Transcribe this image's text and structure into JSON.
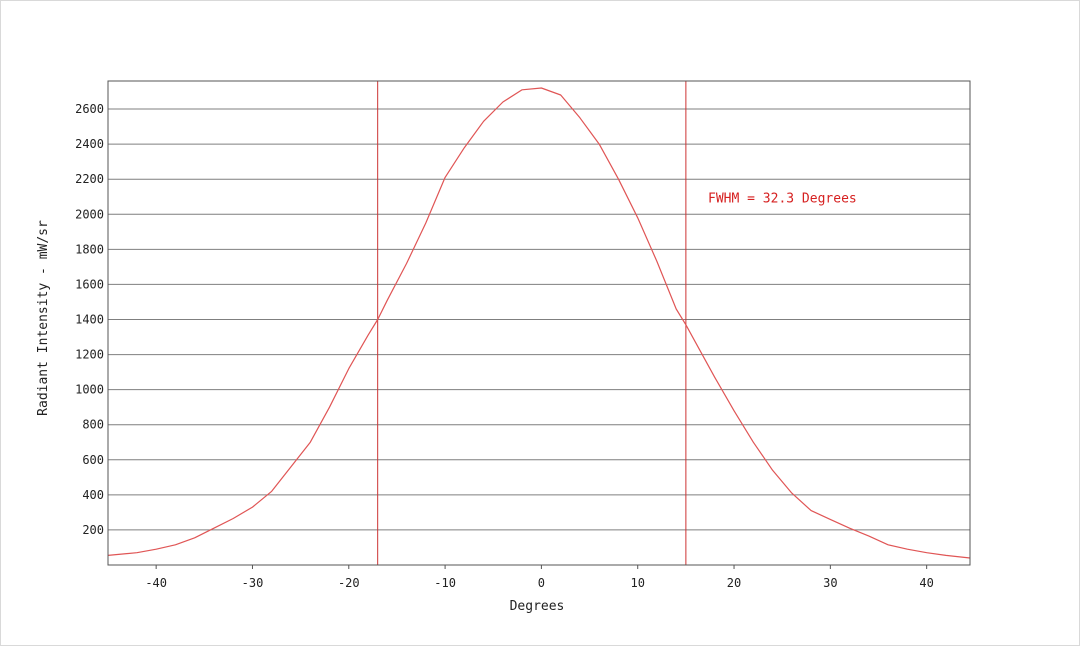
{
  "chart_data": {
    "type": "line",
    "title": "",
    "xlabel": "Degrees",
    "ylabel": "Radiant Intensity - mW/sr",
    "xlim": [
      -45,
      44.5
    ],
    "ylim": [
      0,
      2760
    ],
    "xticks": [
      -40,
      -30,
      -20,
      -10,
      0,
      10,
      20,
      30,
      40
    ],
    "xtick_labels": [
      "-40",
      "-30",
      "-20",
      "-10",
      "0",
      "10",
      "20",
      "30",
      "40"
    ],
    "yticks": [
      200,
      400,
      600,
      800,
      1000,
      1200,
      1400,
      1600,
      1800,
      2000,
      2200,
      2400,
      2600
    ],
    "ytick_labels": [
      "200",
      "400",
      "600",
      "800",
      "1000",
      "1200",
      "1400",
      "1600",
      "1800",
      "2000",
      "2200",
      "2400",
      "2600"
    ],
    "grid": "horizontal",
    "legend": "none",
    "colors": {
      "curve": "#e05555",
      "markers": "#cc3333",
      "annotation": "#d62020",
      "grid": "#7f7f7f",
      "axis": "#555555",
      "text": "#222222"
    },
    "annotation": {
      "text": "FWHM = 32.3 Degrees",
      "x": 17.3,
      "y": 2090
    },
    "fwhm_markers": [
      -17,
      15
    ],
    "series": [
      {
        "x": [
          -45,
          -42,
          -40,
          -38,
          -36,
          -34,
          -32,
          -30,
          -28,
          -26,
          -24,
          -22,
          -20,
          -18,
          -17,
          -16,
          -14,
          -12,
          -10,
          -8,
          -6,
          -4,
          -2,
          0,
          2,
          4,
          6,
          8,
          10,
          12,
          14,
          15,
          16,
          18,
          20,
          22,
          24,
          26,
          28,
          30,
          32,
          34,
          36,
          38,
          40,
          42,
          44.5
        ],
        "y": [
          55,
          70,
          90,
          115,
          155,
          210,
          265,
          330,
          420,
          560,
          700,
          900,
          1120,
          1310,
          1400,
          1510,
          1720,
          1950,
          2210,
          2380,
          2530,
          2640,
          2710,
          2720,
          2680,
          2550,
          2400,
          2200,
          1980,
          1730,
          1460,
          1370,
          1270,
          1070,
          880,
          700,
          540,
          410,
          310,
          260,
          210,
          165,
          115,
          90,
          70,
          55,
          40
        ]
      }
    ]
  }
}
